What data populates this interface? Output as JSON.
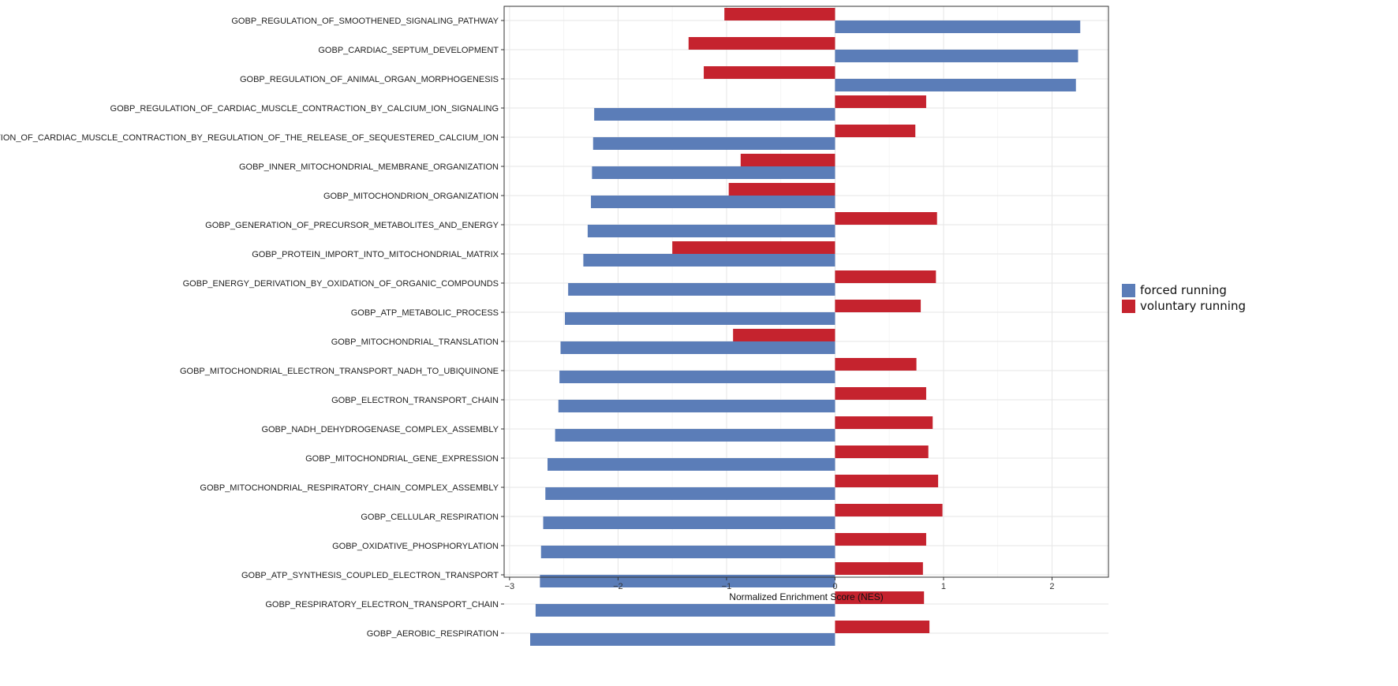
{
  "chart_data": {
    "type": "bar",
    "orientation": "horizontal",
    "xlabel": "Normalized Enrichment Score (NES)",
    "ylabel": "",
    "xlim": [
      -3.05,
      2.52
    ],
    "xticks": [
      -3,
      -2,
      -1,
      0,
      1,
      2
    ],
    "xtick_labels": [
      "−3",
      "−2",
      "−1",
      "0",
      "1",
      "2"
    ],
    "grid": true,
    "legend_position": "right",
    "categories": [
      "GOBP_REGULATION_OF_SMOOTHENED_SIGNALING_PATHWAY",
      "GOBP_CARDIAC_SEPTUM_DEVELOPMENT",
      "GOBP_REGULATION_OF_ANIMAL_ORGAN_MORPHOGENESIS",
      "GOBP_REGULATION_OF_CARDIAC_MUSCLE_CONTRACTION_BY_CALCIUM_ION_SIGNALING",
      "GOBP_REGULATION_OF_CARDIAC_MUSCLE_CONTRACTION_BY_REGULATION_OF_THE_RELEASE_OF_SEQUESTERED_CALCIUM_ION",
      "GOBP_INNER_MITOCHONDRIAL_MEMBRANE_ORGANIZATION",
      "GOBP_MITOCHONDRION_ORGANIZATION",
      "GOBP_GENERATION_OF_PRECURSOR_METABOLITES_AND_ENERGY",
      "GOBP_PROTEIN_IMPORT_INTO_MITOCHONDRIAL_MATRIX",
      "GOBP_ENERGY_DERIVATION_BY_OXIDATION_OF_ORGANIC_COMPOUNDS",
      "GOBP_ATP_METABOLIC_PROCESS",
      "GOBP_MITOCHONDRIAL_TRANSLATION",
      "GOBP_MITOCHONDRIAL_ELECTRON_TRANSPORT_NADH_TO_UBIQUINONE",
      "GOBP_ELECTRON_TRANSPORT_CHAIN",
      "GOBP_NADH_DEHYDROGENASE_COMPLEX_ASSEMBLY",
      "GOBP_MITOCHONDRIAL_GENE_EXPRESSION",
      "GOBP_MITOCHONDRIAL_RESPIRATORY_CHAIN_COMPLEX_ASSEMBLY",
      "GOBP_CELLULAR_RESPIRATION",
      "GOBP_OXIDATIVE_PHOSPHORYLATION",
      "GOBP_ATP_SYNTHESIS_COUPLED_ELECTRON_TRANSPORT",
      "GOBP_RESPIRATORY_ELECTRON_TRANSPORT_CHAIN",
      "GOBP_AEROBIC_RESPIRATION"
    ],
    "series": [
      {
        "name": "forced running",
        "color": "#5B7DB8",
        "values": [
          2.26,
          2.24,
          2.22,
          -2.22,
          -2.23,
          -2.24,
          -2.25,
          -2.28,
          -2.32,
          -2.46,
          -2.49,
          -2.53,
          -2.54,
          -2.55,
          -2.58,
          -2.65,
          -2.67,
          -2.69,
          -2.71,
          -2.72,
          -2.76,
          -2.81
        ]
      },
      {
        "name": "voluntary running",
        "color": "#C5232E",
        "values": [
          -1.02,
          -1.35,
          -1.21,
          0.84,
          0.74,
          -0.87,
          -0.98,
          0.94,
          -1.5,
          0.93,
          0.79,
          -0.94,
          0.75,
          0.84,
          0.9,
          0.86,
          0.95,
          0.99,
          0.84,
          0.81,
          0.82,
          0.87
        ]
      }
    ]
  }
}
